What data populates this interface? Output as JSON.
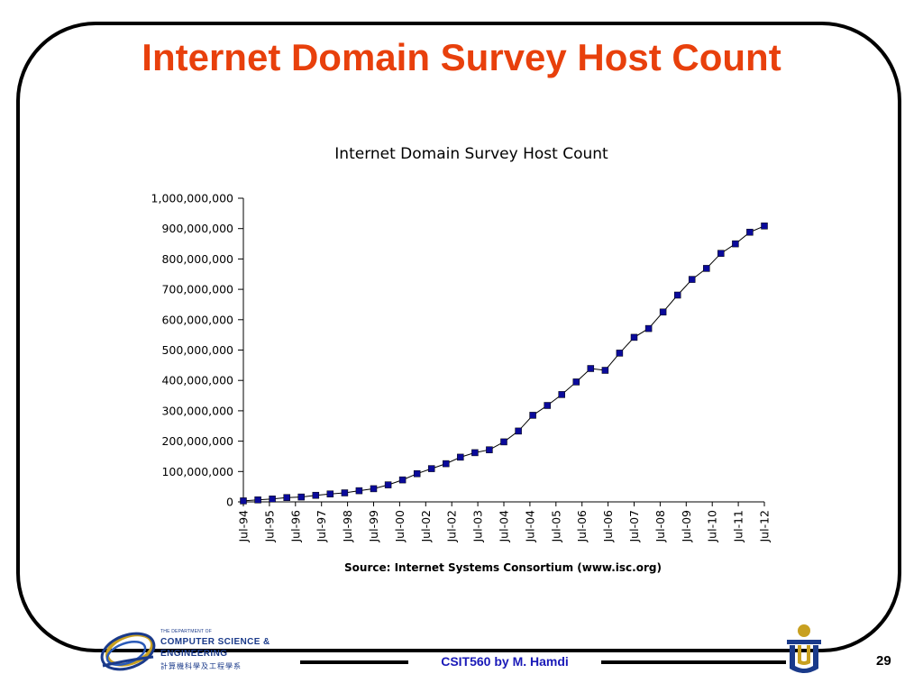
{
  "slide": {
    "title": "Internet Domain Survey Host Count",
    "footer_text": "CSIT560 by M. Hamdi",
    "page_number": "29"
  },
  "logo": {
    "small_line": "THE DEPARTMENT OF",
    "line1": "COMPUTER SCIENCE &",
    "line2": "ENGINEERING",
    "chinese": "計算機科學及工程學系"
  },
  "colors": {
    "title": "#e8400c",
    "marker": "#0a0a9a",
    "footer_text": "#1a1ab8",
    "logo_blue": "#1a3a8a",
    "logo_gold": "#c8a020"
  },
  "chart_data": {
    "type": "line",
    "title": "Internet Domain Survey Host Count",
    "source_note": "Source: Internet Systems Consortium (www.isc.org)",
    "xlabel": "",
    "ylabel": "",
    "ylim": [
      0,
      1000000000
    ],
    "yticks": [
      0,
      100000000,
      200000000,
      300000000,
      400000000,
      500000000,
      600000000,
      700000000,
      800000000,
      900000000,
      1000000000
    ],
    "ytick_labels": [
      "0",
      "100,000,000",
      "200,000,000",
      "300,000,000",
      "400,000,000",
      "500,000,000",
      "600,000,000",
      "700,000,000",
      "800,000,000",
      "900,000,000",
      "1,000,000,000"
    ],
    "xtick_labels": [
      "Jul-94",
      "Jul-95",
      "Jul-96",
      "Jul-97",
      "Jul-98",
      "Jul-99",
      "Jul-00",
      "Jul-02",
      "Jul-02",
      "Jul-03",
      "Jul-04",
      "Jul-04",
      "Jul-05",
      "Jul-06",
      "Jul-06",
      "Jul-07",
      "Jul-08",
      "Jul-09",
      "Jul-10",
      "Jul-11",
      "Jul-12"
    ],
    "grid": false,
    "legend": "none",
    "series": [
      {
        "values": [
          3200000,
          6600000,
          9500000,
          14300000,
          16100000,
          21800000,
          26000000,
          29700000,
          36700000,
          43200000,
          56200000,
          72400000,
          93000000,
          109600000,
          125900000,
          147300000,
          162100000,
          171600000,
          197700000,
          233100000,
          285100000,
          317600000,
          353300000,
          394900000,
          439300000,
          433200000,
          489800000,
          541700000,
          570900000,
          625200000,
          681100000,
          732700000,
          768900000,
          818400000,
          849900000,
          888200000,
          908600000
        ]
      }
    ]
  }
}
